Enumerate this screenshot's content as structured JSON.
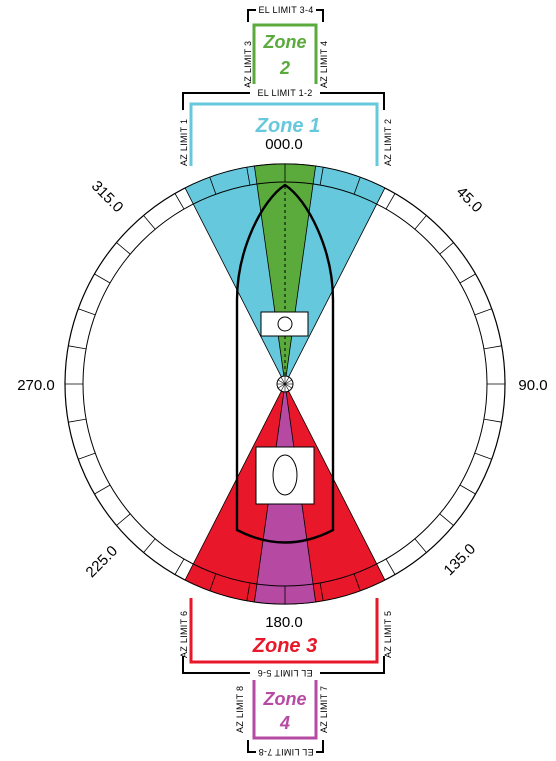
{
  "colors": {
    "zone1": "#66c8dc",
    "zone2": "#5aaa3c",
    "zone3": "#e8172a",
    "zone4": "#b64aa3",
    "outline": "#000000"
  },
  "bearings": {
    "b000": "000.0",
    "b045": "45.0",
    "b090": "90.0",
    "b135": "135.0",
    "b180": "180.0",
    "b225": "225.0",
    "b270": "270.0",
    "b315": "315.0"
  },
  "zones": {
    "zone1": {
      "line1": "Zone 1"
    },
    "zone2": {
      "line1": "Zone",
      "line2": "2"
    },
    "zone3": {
      "line1": "Zone 3"
    },
    "zone4": {
      "line1": "Zone",
      "line2": "4"
    }
  },
  "limits": {
    "el_1_2": "EL LIMIT 1-2",
    "el_3_4": "EL LIMIT 3-4",
    "el_5_6": "EL LIMIT 5-6",
    "el_7_8": "EL LIMIT 7-8",
    "az_1": "AZ LIMIT 1",
    "az_2": "AZ LIMIT 2",
    "az_3": "AZ LIMIT 3",
    "az_4": "AZ LIMIT 4",
    "az_5": "AZ LIMIT 5",
    "az_6": "AZ LIMIT 6",
    "az_7": "AZ LIMIT 7",
    "az_8": "AZ LIMIT 8"
  }
}
